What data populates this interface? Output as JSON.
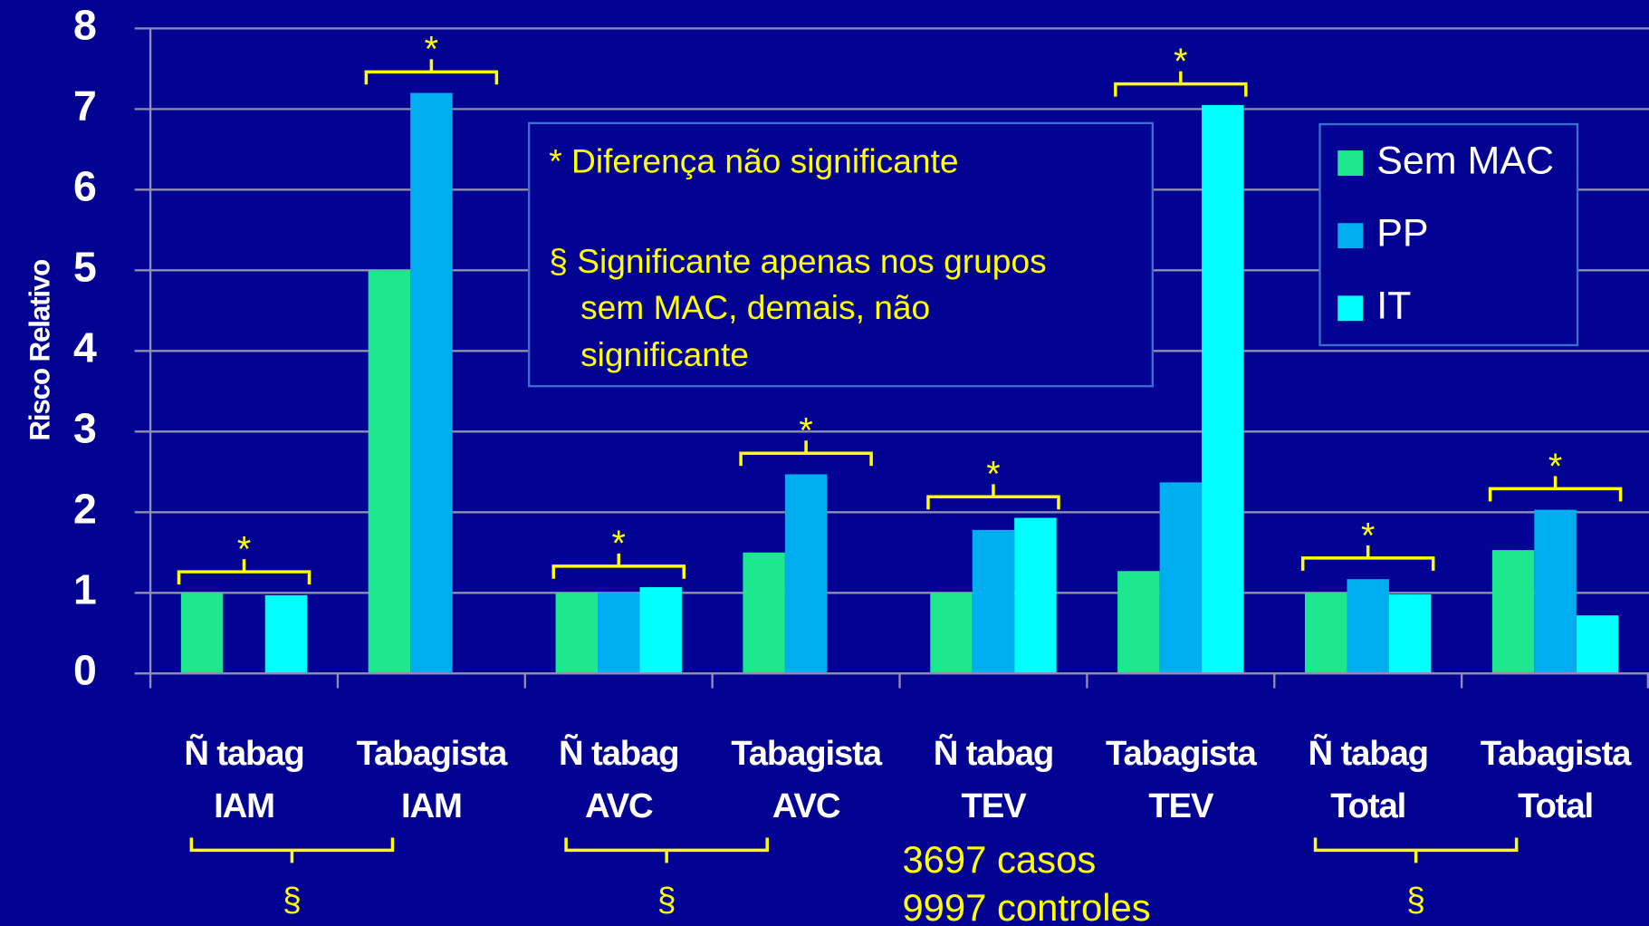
{
  "chart_data": {
    "type": "bar",
    "y_label": "Risco Relativo",
    "categories": [
      [
        "Ñ tabag",
        "IAM"
      ],
      [
        "Tabagista",
        "IAM"
      ],
      [
        "Ñ tabag",
        "AVC"
      ],
      [
        "Tabagista",
        "AVC"
      ],
      [
        "Ñ tabag",
        "TEV"
      ],
      [
        "Tabagista",
        "TEV"
      ],
      [
        "Ñ tabag",
        "Total"
      ],
      [
        "Tabagista",
        "Total"
      ]
    ],
    "series": [
      {
        "name": "Sem MAC",
        "color": "#1ee88e",
        "values": [
          1.0,
          5.0,
          1.0,
          1.5,
          1.0,
          1.27,
          1.0,
          1.53
        ]
      },
      {
        "name": "PP",
        "color": "#00adef",
        "values": [
          null,
          7.2,
          1.0,
          2.47,
          1.78,
          2.37,
          1.17,
          2.03
        ]
      },
      {
        "name": "IT",
        "color": "#00ffff",
        "values": [
          0.97,
          null,
          1.07,
          null,
          1.93,
          7.05,
          0.98,
          0.72
        ]
      }
    ],
    "ylim": [
      0,
      8
    ],
    "yticks": [
      0,
      1,
      2,
      3,
      4,
      5,
      6,
      7,
      8
    ],
    "grid": true,
    "legend": "upper right",
    "group_marks": [
      "*",
      "*",
      "*",
      "*",
      "*",
      "*",
      "*",
      "*"
    ],
    "pair_marks": [
      "§",
      "§",
      "§"
    ],
    "note": [
      "* Diferença não significante",
      "§ Significante apenas nos grupos",
      "sem MAC, demais, não",
      "significante"
    ],
    "footnote": [
      "3697 casos",
      "9997 controles"
    ]
  }
}
